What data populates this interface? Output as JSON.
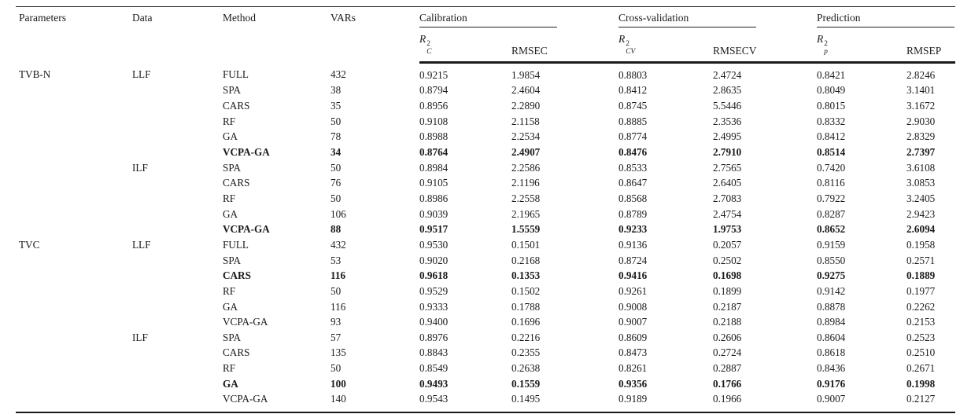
{
  "table": {
    "header": {
      "parameters": "Parameters",
      "data": "Data",
      "method": "Method",
      "vars": "VARs",
      "groups": [
        {
          "label": "Calibration"
        },
        {
          "label": "Cross-validation"
        },
        {
          "label": "Prediction"
        }
      ],
      "r_headers": [
        {
          "base": "R",
          "sup": "2",
          "sub": "C"
        },
        {
          "base": "R",
          "sup": "2",
          "sub": "CV"
        },
        {
          "base": "R",
          "sup": "2",
          "sub": "p"
        }
      ],
      "rmse_headers": [
        "RMSEC",
        "RMSECV",
        "RMSEP"
      ]
    },
    "rows": [
      {
        "parameter": "TVB-N",
        "data": "LLF",
        "method": "FULL",
        "vars": "432",
        "rc2": "0.9215",
        "rmsec": "1.9854",
        "rcv2": "0.8803",
        "rmsecv": "2.4724",
        "rp2": "0.8421",
        "rmsep": "2.8246",
        "bold": false
      },
      {
        "parameter": "",
        "data": "",
        "method": "SPA",
        "vars": "38",
        "rc2": "0.8794",
        "rmsec": "2.4604",
        "rcv2": "0.8412",
        "rmsecv": "2.8635",
        "rp2": "0.8049",
        "rmsep": "3.1401",
        "bold": false
      },
      {
        "parameter": "",
        "data": "",
        "method": "CARS",
        "vars": "35",
        "rc2": "0.8956",
        "rmsec": "2.2890",
        "rcv2": "0.8745",
        "rmsecv": "5.5446",
        "rp2": "0.8015",
        "rmsep": "3.1672",
        "bold": false
      },
      {
        "parameter": "",
        "data": "",
        "method": "RF",
        "vars": "50",
        "rc2": "0.9108",
        "rmsec": "2.1158",
        "rcv2": "0.8885",
        "rmsecv": "2.3536",
        "rp2": "0.8332",
        "rmsep": "2.9030",
        "bold": false
      },
      {
        "parameter": "",
        "data": "",
        "method": "GA",
        "vars": "78",
        "rc2": "0.8988",
        "rmsec": "2.2534",
        "rcv2": "0.8774",
        "rmsecv": "2.4995",
        "rp2": "0.8412",
        "rmsep": "2.8329",
        "bold": false
      },
      {
        "parameter": "",
        "data": "",
        "method": "VCPA-GA",
        "vars": "34",
        "rc2": "0.8764",
        "rmsec": "2.4907",
        "rcv2": "0.8476",
        "rmsecv": "2.7910",
        "rp2": "0.8514",
        "rmsep": "2.7397",
        "bold": true
      },
      {
        "parameter": "",
        "data": "ILF",
        "method": "SPA",
        "vars": "50",
        "rc2": "0.8984",
        "rmsec": "2.2586",
        "rcv2": "0.8533",
        "rmsecv": "2.7565",
        "rp2": "0.7420",
        "rmsep": "3.6108",
        "bold": false
      },
      {
        "parameter": "",
        "data": "",
        "method": "CARS",
        "vars": "76",
        "rc2": "0.9105",
        "rmsec": "2.1196",
        "rcv2": "0.8647",
        "rmsecv": "2.6405",
        "rp2": "0.8116",
        "rmsep": "3.0853",
        "bold": false
      },
      {
        "parameter": "",
        "data": "",
        "method": "RF",
        "vars": "50",
        "rc2": "0.8986",
        "rmsec": "2.2558",
        "rcv2": "0.8568",
        "rmsecv": "2.7083",
        "rp2": "0.7922",
        "rmsep": "3.2405",
        "bold": false
      },
      {
        "parameter": "",
        "data": "",
        "method": "GA",
        "vars": "106",
        "rc2": "0.9039",
        "rmsec": "2.1965",
        "rcv2": "0.8789",
        "rmsecv": "2.4754",
        "rp2": "0.8287",
        "rmsep": "2.9423",
        "bold": false
      },
      {
        "parameter": "",
        "data": "",
        "method": "VCPA-GA",
        "vars": "88",
        "rc2": "0.9517",
        "rmsec": "1.5559",
        "rcv2": "0.9233",
        "rmsecv": "1.9753",
        "rp2": "0.8652",
        "rmsep": "2.6094",
        "bold": true
      },
      {
        "parameter": "TVC",
        "data": "LLF",
        "method": "FULL",
        "vars": "432",
        "rc2": "0.9530",
        "rmsec": "0.1501",
        "rcv2": "0.9136",
        "rmsecv": "0.2057",
        "rp2": "0.9159",
        "rmsep": "0.1958",
        "bold": false
      },
      {
        "parameter": "",
        "data": "",
        "method": "SPA",
        "vars": "53",
        "rc2": "0.9020",
        "rmsec": "0.2168",
        "rcv2": "0.8724",
        "rmsecv": "0.2502",
        "rp2": "0.8550",
        "rmsep": "0.2571",
        "bold": false
      },
      {
        "parameter": "",
        "data": "",
        "method": "CARS",
        "vars": "116",
        "rc2": "0.9618",
        "rmsec": "0.1353",
        "rcv2": "0.9416",
        "rmsecv": "0.1698",
        "rp2": "0.9275",
        "rmsep": "0.1889",
        "bold": true
      },
      {
        "parameter": "",
        "data": "",
        "method": "RF",
        "vars": "50",
        "rc2": "0.9529",
        "rmsec": "0.1502",
        "rcv2": "0.9261",
        "rmsecv": "0.1899",
        "rp2": "0.9142",
        "rmsep": "0.1977",
        "bold": false
      },
      {
        "parameter": "",
        "data": "",
        "method": "GA",
        "vars": "116",
        "rc2": "0.9333",
        "rmsec": "0.1788",
        "rcv2": "0.9008",
        "rmsecv": "0.2187",
        "rp2": "0.8878",
        "rmsep": "0.2262",
        "bold": false
      },
      {
        "parameter": "",
        "data": "",
        "method": "VCPA-GA",
        "vars": "93",
        "rc2": "0.9400",
        "rmsec": "0.1696",
        "rcv2": "0.9007",
        "rmsecv": "0.2188",
        "rp2": "0.8984",
        "rmsep": "0.2153",
        "bold": false
      },
      {
        "parameter": "",
        "data": "ILF",
        "method": "SPA",
        "vars": "57",
        "rc2": "0.8976",
        "rmsec": "0.2216",
        "rcv2": "0.8609",
        "rmsecv": "0.2606",
        "rp2": "0.8604",
        "rmsep": "0.2523",
        "bold": false
      },
      {
        "parameter": "",
        "data": "",
        "method": "CARS",
        "vars": "135",
        "rc2": "0.8843",
        "rmsec": "0.2355",
        "rcv2": "0.8473",
        "rmsecv": "0.2724",
        "rp2": "0.8618",
        "rmsep": "0.2510",
        "bold": false
      },
      {
        "parameter": "",
        "data": "",
        "method": "RF",
        "vars": "50",
        "rc2": "0.8549",
        "rmsec": "0.2638",
        "rcv2": "0.8261",
        "rmsecv": "0.2887",
        "rp2": "0.8436",
        "rmsep": "0.2671",
        "bold": false
      },
      {
        "parameter": "",
        "data": "",
        "method": "GA",
        "vars": "100",
        "rc2": "0.9493",
        "rmsec": "0.1559",
        "rcv2": "0.9356",
        "rmsecv": "0.1766",
        "rp2": "0.9176",
        "rmsep": "0.1998",
        "bold": true
      },
      {
        "parameter": "",
        "data": "",
        "method": "VCPA-GA",
        "vars": "140",
        "rc2": "0.9543",
        "rmsec": "0.1495",
        "rcv2": "0.9189",
        "rmsecv": "0.1966",
        "rp2": "0.9007",
        "rmsep": "0.2127",
        "bold": false
      }
    ]
  }
}
